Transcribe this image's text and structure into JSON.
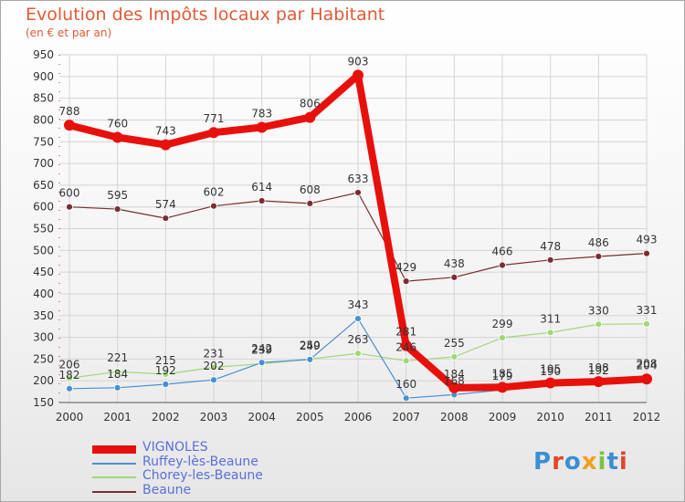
{
  "title": "Evolution des Impôts locaux par Habitant",
  "subtitle": "(en € et par an)",
  "logo": {
    "text": "Proxiti",
    "letters": [
      "P",
      "r",
      "o",
      "x",
      "i",
      "t",
      "i"
    ],
    "colors": [
      "#3a8fd0",
      "#e0472b",
      "#3a8fd0",
      "#f0a020",
      "#7cc242",
      "#3a8fd0",
      "#e0472b"
    ]
  },
  "chart_data": {
    "type": "line",
    "title": "Evolution des Impôts locaux par Habitant",
    "subtitle": "(en € et par an)",
    "x": [
      "2000",
      "2001",
      "2002",
      "2003",
      "2004",
      "2005",
      "2006",
      "2007",
      "2008",
      "2009",
      "2010",
      "2011",
      "2012"
    ],
    "ylim": [
      150,
      950
    ],
    "yticks": [
      150,
      200,
      250,
      300,
      350,
      400,
      450,
      500,
      550,
      600,
      650,
      700,
      750,
      800,
      850,
      900,
      950
    ],
    "grid": true,
    "legend_position": "bottom-left",
    "series": [
      {
        "name": "VIGNOLES",
        "color": "#e8100c",
        "values": [
          788,
          760,
          743,
          771,
          783,
          806,
          903,
          281,
          184,
          185,
          195,
          198,
          204
        ],
        "labels": [
          "788",
          "760",
          "743",
          "771",
          "783",
          "806",
          "903",
          "281",
          "184",
          "185",
          "195",
          "198",
          "204"
        ]
      },
      {
        "name": "Ruffey-lès-Beaune",
        "color": "#4a90d0",
        "values": [
          182,
          184,
          192,
          202,
          242,
          249,
          343,
          160,
          168,
          179,
          190,
          192,
          208
        ],
        "labels": [
          "182",
          "184",
          "192",
          "202",
          "242",
          "249",
          "343",
          "160",
          "168",
          "179",
          "190",
          "192",
          "208"
        ]
      },
      {
        "name": "Chorey-les-Beaune",
        "color": "#9ed878",
        "values": [
          206,
          221,
          215,
          231,
          239,
          250,
          263,
          246,
          255,
          299,
          311,
          330,
          331
        ],
        "labels": [
          "206",
          "221",
          "215",
          "231",
          "239",
          "250",
          "263",
          "246",
          "255",
          "299",
          "311",
          "330",
          "331"
        ]
      },
      {
        "name": "Beaune",
        "color": "#7a2e2e",
        "values": [
          600,
          595,
          574,
          602,
          614,
          608,
          633,
          429,
          438,
          466,
          478,
          486,
          493
        ],
        "labels": [
          "600",
          "595",
          "574",
          "602",
          "614",
          "608",
          "633",
          "429",
          "438",
          "466",
          "478",
          "486",
          "493"
        ]
      }
    ]
  }
}
